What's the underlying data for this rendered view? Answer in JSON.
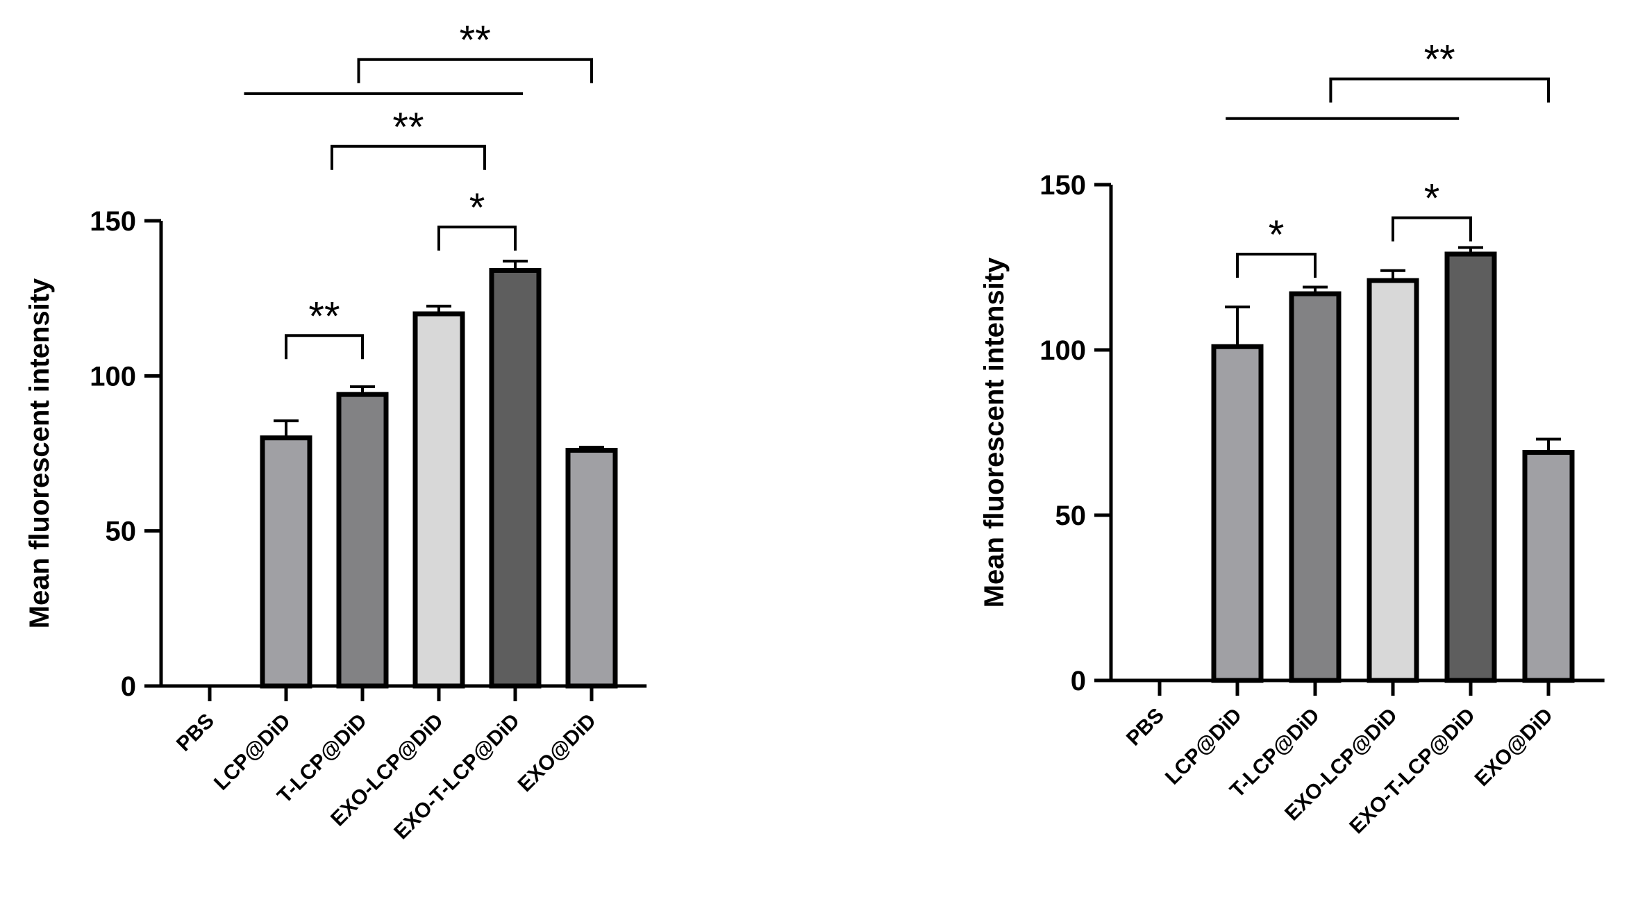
{
  "chart_data": [
    {
      "type": "bar",
      "ylabel": "Mean fluorescent intensity",
      "ylim": [
        0,
        150
      ],
      "yticks": [
        0,
        50,
        100,
        150
      ],
      "categories": [
        "PBS",
        "LCP@DiD",
        "T-LCP@DiD",
        "EXO-LCP@DiD",
        "EXO-T-LCP@DiD",
        "EXO@DiD"
      ],
      "values": [
        0,
        80,
        94,
        120,
        134,
        76
      ],
      "errors": [
        0,
        5.5,
        2.5,
        2.5,
        3,
        1
      ],
      "colors": [
        "#a0a0a4",
        "#a0a0a4",
        "#828284",
        "#d8d8d8",
        "#5e5e5e",
        "#a0a0a4"
      ],
      "significance": [
        {
          "from": 1,
          "to": 2,
          "label": "**",
          "y": 113
        },
        {
          "from": 3,
          "to": 4,
          "label": "*",
          "y": 148
        },
        {
          "from": 1.6,
          "to": 3.6,
          "label": "**",
          "y": 174
        },
        {
          "from": 1.95,
          "to": 5.0,
          "label": "**",
          "y": 202
        }
      ],
      "lines": [
        {
          "from": 0.45,
          "to": 4.1,
          "y": 191
        }
      ]
    },
    {
      "type": "bar",
      "ylabel": "Mean fluorescent intensity",
      "ylim": [
        0,
        150
      ],
      "yticks": [
        0,
        50,
        100,
        150
      ],
      "categories": [
        "PBS",
        "LCP@DiD",
        "T-LCP@DiD",
        "EXO-LCP@DiD",
        "EXO-T-LCP@DiD",
        "EXO@DiD"
      ],
      "values": [
        0,
        101,
        117,
        121,
        129,
        69
      ],
      "errors": [
        0,
        12,
        2,
        3,
        2,
        4
      ],
      "colors": [
        "#a0a0a4",
        "#a0a0a4",
        "#828284",
        "#d8d8d8",
        "#5e5e5e",
        "#a0a0a4"
      ],
      "significance": [
        {
          "from": 1,
          "to": 2,
          "label": "*",
          "y": 129
        },
        {
          "from": 3,
          "to": 4,
          "label": "*",
          "y": 140
        },
        {
          "from": 2.2,
          "to": 5.0,
          "label": "**",
          "y": 182
        }
      ],
      "lines": [
        {
          "from": 0.85,
          "to": 3.85,
          "y": 170
        }
      ]
    }
  ]
}
